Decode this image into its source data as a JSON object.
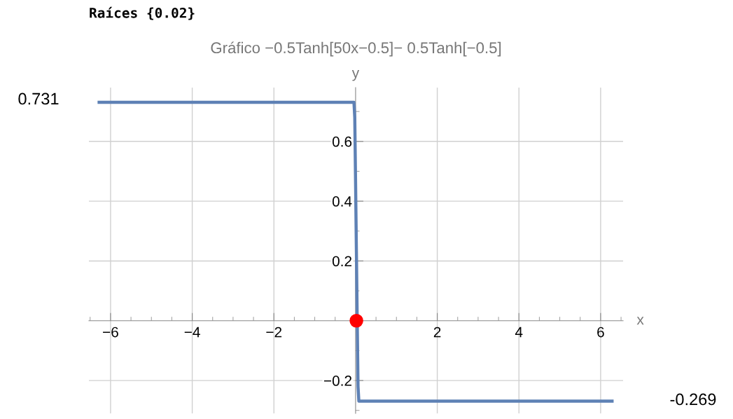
{
  "chart_data": {
    "type": "line",
    "title": "Gráfico −0.5Tanh[50x−0.5]− 0.5Tanh[−0.5]",
    "xlabel": "x",
    "ylabel": "y",
    "annotations": [
      "Raíces {0.02}",
      "0.731",
      "-0.269"
    ],
    "series": [
      {
        "color": "#5e81b5",
        "x": [
          -6.28,
          -0.04,
          -0.02,
          0,
          0.02,
          0.04,
          0.06,
          0.08,
          6.28
        ],
        "values": [
          0.731,
          0.731,
          0.68,
          0.46,
          0.23,
          0.0,
          -0.22,
          -0.269,
          -0.269
        ]
      },
      {
        "type": "scatter",
        "color": "#ff0000",
        "x": [
          0.02
        ],
        "values": [
          0
        ]
      }
    ],
    "xlim": [
      -6.53,
      6.55
    ],
    "ylim": [
      -0.31,
      0.78
    ],
    "xticks": [
      -6,
      -4,
      -2,
      2,
      4,
      6
    ],
    "yticks": [
      -0.2,
      0.2,
      0.4,
      0.6
    ],
    "grid": true,
    "line_style": "solid"
  }
}
